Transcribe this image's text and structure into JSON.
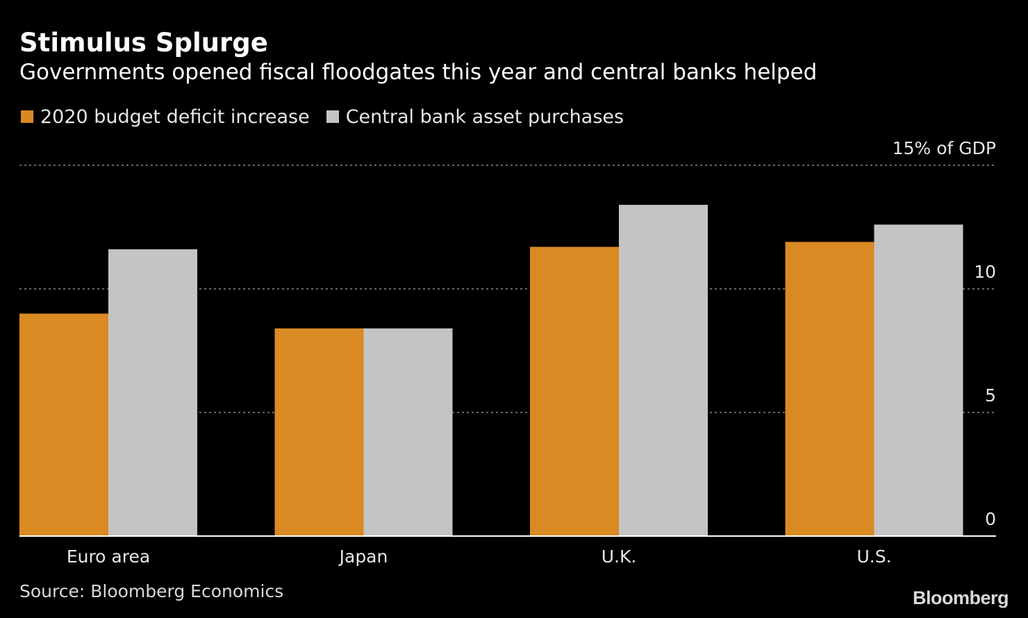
{
  "chart_data": {
    "type": "bar",
    "title": "Stimulus Splurge",
    "subtitle": "Governments opened fiscal floodgates this year and central banks helped",
    "categories": [
      "Euro area",
      "Japan",
      "U.K.",
      "U.S."
    ],
    "series": [
      {
        "name": "2020 budget deficit increase",
        "color": "#d98a22",
        "values": [
          9.0,
          8.4,
          11.7,
          11.9
        ]
      },
      {
        "name": "Central bank asset purchases",
        "color": "#c4c4c4",
        "values": [
          11.6,
          8.4,
          13.4,
          12.6
        ]
      }
    ],
    "y_ticks": [
      {
        "value": 15,
        "label": "15% of GDP"
      },
      {
        "value": 10,
        "label": "10"
      },
      {
        "value": 5,
        "label": "5"
      },
      {
        "value": 0,
        "label": "0"
      }
    ],
    "ylim": [
      0,
      15
    ],
    "grid": true,
    "legend_position": "top-left",
    "source": "Source: Bloomberg Economics"
  },
  "branding": {
    "logo_text": "Bloomberg"
  }
}
